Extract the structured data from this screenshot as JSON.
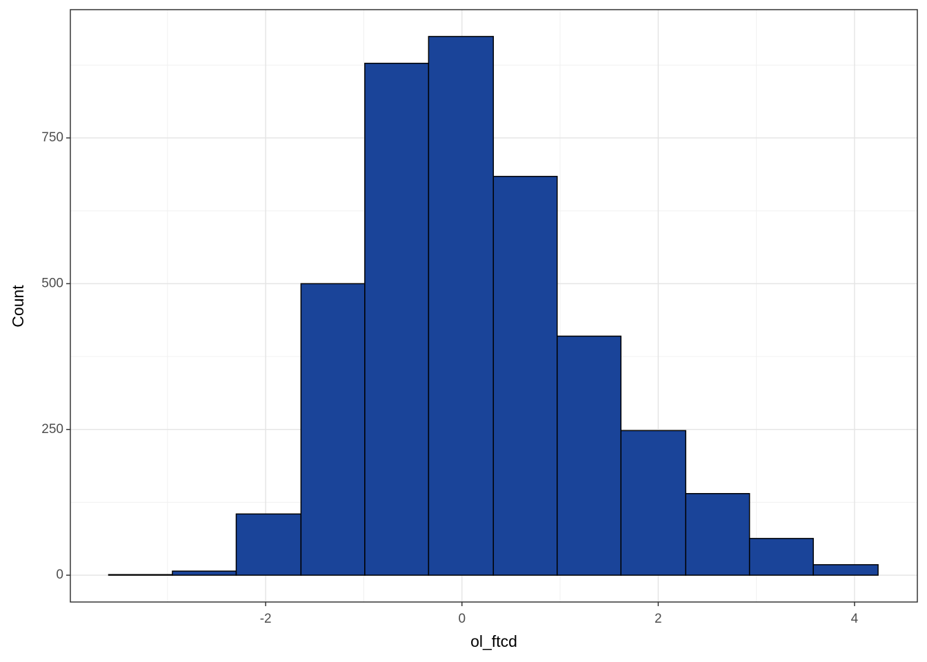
{
  "chart_data": {
    "type": "histogram",
    "x_label": "ol_ftcd",
    "y_label": "Count",
    "bins": [
      -3.6,
      -2.95,
      -2.3,
      -1.64,
      -0.99,
      -0.34,
      0.32,
      0.97,
      1.62,
      2.28,
      2.93,
      3.58,
      4.24
    ],
    "values": [
      1,
      7,
      105,
      500,
      878,
      924,
      684,
      410,
      248,
      140,
      63,
      18
    ],
    "color": "#1a4499",
    "edge_color": "#000000",
    "xlim": [
      -3.99,
      4.64
    ],
    "ylim": [
      -46,
      970
    ],
    "xticks": [
      -2,
      0,
      2,
      4
    ],
    "yticks": [
      0,
      250,
      500,
      750
    ],
    "x_minor_grid": [
      -3,
      -1,
      1,
      3
    ],
    "y_minor_grid": [
      125,
      375,
      625,
      875
    ],
    "grid": true
  }
}
